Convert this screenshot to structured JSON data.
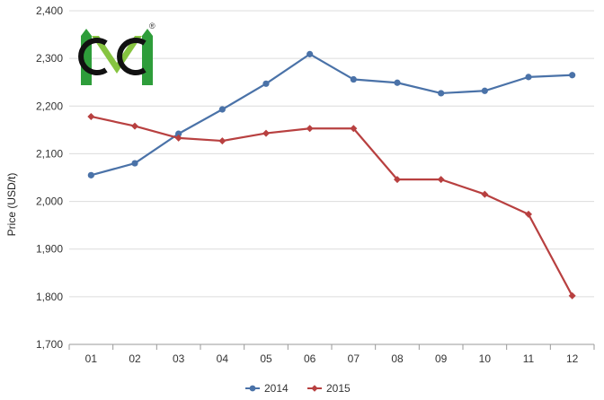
{
  "chart_data": {
    "type": "line",
    "title": "",
    "xlabel": "",
    "ylabel": "Price (USD/t)",
    "categories": [
      "01",
      "02",
      "03",
      "04",
      "05",
      "06",
      "07",
      "08",
      "09",
      "10",
      "11",
      "12"
    ],
    "ylim": [
      1700,
      2400
    ],
    "yticks": [
      1700,
      1800,
      1900,
      2000,
      2100,
      2200,
      2300,
      2400
    ],
    "ytick_labels": [
      "1,700",
      "1,800",
      "1,900",
      "2,000",
      "2,100",
      "2,200",
      "2,300",
      "2,400"
    ],
    "grid": "horizontal",
    "legend_position": "bottom-center",
    "series": [
      {
        "name": "2014",
        "color": "#4a72a8",
        "marker": "circle",
        "values": [
          2055,
          2080,
          2142,
          2193,
          2247,
          2309,
          2256,
          2249,
          2227,
          2232,
          2261,
          2265
        ]
      },
      {
        "name": "2015",
        "color": "#b84040",
        "marker": "diamond",
        "values": [
          2178,
          2158,
          2133,
          2127,
          2143,
          2153,
          2153,
          2046,
          2046,
          2015,
          1973,
          1802
        ]
      }
    ]
  },
  "logo": {
    "mark": "logo-mark",
    "registered_symbol": "®",
    "colors": {
      "green": "#2e9d3a",
      "light_green": "#86c440",
      "black": "#111111"
    }
  }
}
